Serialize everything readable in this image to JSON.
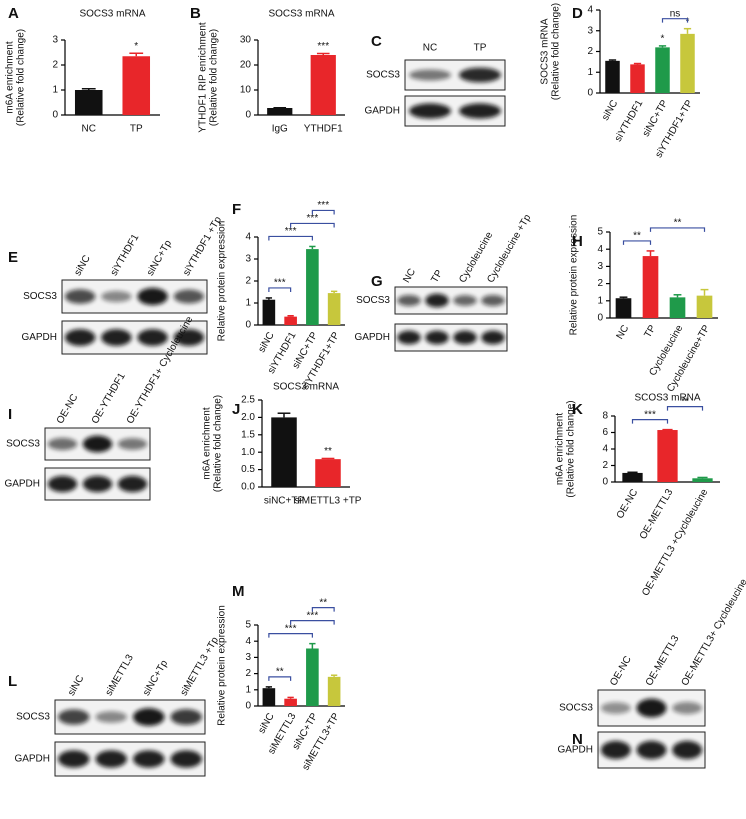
{
  "chart_data": [
    {
      "type": "bar",
      "panel": "A",
      "title": "SOCS3 mRNA",
      "ylabel": [
        "m6A enrichment",
        "(Relative fold change)"
      ],
      "categories": [
        "NC",
        "TP"
      ],
      "values": [
        1.0,
        2.35
      ],
      "errors": [
        0.05,
        0.12
      ],
      "colors": [
        "#111111",
        "#e8262a"
      ],
      "ylim": [
        0,
        3
      ],
      "yticks": [
        0,
        1,
        2,
        3
      ],
      "rotate_labels": false,
      "significance": [
        null,
        "*"
      ],
      "comparisons": []
    },
    {
      "type": "bar",
      "panel": "B",
      "title": "SOCS3 mRNA",
      "ylabel": [
        "YTHDF1 RIP enrichment",
        "(Relative fold change)"
      ],
      "categories": [
        "IgG",
        "YTHDF1"
      ],
      "values": [
        2.8,
        24.0
      ],
      "errors": [
        0.1,
        0.6
      ],
      "colors": [
        "#111111",
        "#e8262a"
      ],
      "ylim": [
        0,
        30
      ],
      "yticks": [
        0,
        10,
        20,
        30
      ],
      "rotate_labels": false,
      "significance": [
        null,
        "***"
      ],
      "comparisons": []
    },
    {
      "type": "bar",
      "panel": "D",
      "ylabel": [
        "SOCS3 mRNA",
        "(Relative fold change)"
      ],
      "categories": [
        "siNC",
        "siYTHDF1",
        "siNC+TP",
        "siYTHDF1+TP"
      ],
      "values": [
        1.55,
        1.38,
        2.2,
        2.85
      ],
      "errors": [
        0.04,
        0.04,
        0.07,
        0.25
      ],
      "colors": [
        "#111111",
        "#e8262a",
        "#1f9a4a",
        "#c7c73c"
      ],
      "ylim": [
        0,
        4
      ],
      "yticks": [
        0,
        1,
        2,
        3,
        4
      ],
      "rotate_labels": true,
      "significance": [
        null,
        null,
        "*",
        "*"
      ],
      "comparisons": [
        {
          "pair": [
            "siNC+TP",
            "siYTHDF1+TP"
          ],
          "label": "ns"
        }
      ]
    },
    {
      "type": "bar",
      "panel": "F",
      "ylabel": [
        "Relative protein expression"
      ],
      "categories": [
        "siNC",
        "siYTHDF1",
        "siNC+TP",
        "siYTHDF1+TP"
      ],
      "values": [
        1.15,
        0.38,
        3.45,
        1.45
      ],
      "errors": [
        0.08,
        0.04,
        0.12,
        0.08
      ],
      "colors": [
        "#111111",
        "#e8262a",
        "#1f9a4a",
        "#c7c73c"
      ],
      "ylim": [
        0,
        4
      ],
      "yticks": [
        0,
        1,
        2,
        3,
        4
      ],
      "rotate_labels": true,
      "significance": [],
      "comparisons": [
        {
          "pair": [
            "siNC",
            "siYTHDF1"
          ],
          "label": "***"
        },
        {
          "pair": [
            "siNC",
            "siNC+TP"
          ],
          "label": "***"
        },
        {
          "pair": [
            "siYTHDF1",
            "siYTHDF1+TP"
          ],
          "label": "***"
        },
        {
          "pair": [
            "siNC+TP",
            "siYTHDF1+TP"
          ],
          "label": "***"
        }
      ]
    },
    {
      "type": "bar",
      "panel": "H",
      "ylabel": [
        "Relative protein expression"
      ],
      "categories": [
        "NC",
        "TP",
        "Cycloleucine",
        "Cycloleucine+TP"
      ],
      "values": [
        1.15,
        3.6,
        1.2,
        1.3
      ],
      "errors": [
        0.06,
        0.3,
        0.15,
        0.35
      ],
      "colors": [
        "#111111",
        "#e8262a",
        "#1f9a4a",
        "#c7c73c"
      ],
      "ylim": [
        0,
        5
      ],
      "yticks": [
        0,
        1,
        2,
        3,
        4,
        5
      ],
      "rotate_labels": true,
      "significance": [],
      "comparisons": [
        {
          "pair": [
            "NC",
            "TP"
          ],
          "label": "**"
        },
        {
          "pair": [
            "TP",
            "Cycloleucine+TP"
          ],
          "label": "**"
        }
      ]
    },
    {
      "type": "bar",
      "panel": "J",
      "title": "SOCS3 mRNA",
      "ylabel": [
        "m6A enrichment",
        "(Relative fold change)"
      ],
      "categories": [
        "siNC+TP",
        "siMETTL3 +TP"
      ],
      "values": [
        2.0,
        0.8
      ],
      "errors": [
        0.12,
        0.02
      ],
      "colors": [
        "#111111",
        "#e8262a"
      ],
      "ylim": [
        0,
        2.5
      ],
      "yticks": [
        {
          "value": 0,
          "label": "0.0"
        },
        0.5,
        {
          "value": 1,
          "label": "1.0"
        },
        1.5,
        {
          "value": 2,
          "label": "2.0"
        },
        2.5
      ],
      "rotate_labels": false,
      "significance": [
        null,
        "**"
      ],
      "comparisons": []
    },
    {
      "type": "bar",
      "panel": "K",
      "title": "SCOS3 mRNA",
      "ylabel": [
        "m6A enrichment",
        "(Relative fold change)"
      ],
      "categories": [
        "OE-NC",
        "OE-METTL3",
        "OE-METTL3 +Cycloleucine"
      ],
      "values": [
        1.1,
        6.3,
        0.45
      ],
      "errors": [
        0.08,
        0.05,
        0.1
      ],
      "colors": [
        "#111111",
        "#e8262a",
        "#1f9a4a"
      ],
      "ylim": [
        0,
        8
      ],
      "yticks": [
        0,
        2,
        4,
        6,
        8
      ],
      "rotate_labels": true,
      "significance": [],
      "comparisons": [
        {
          "pair": [
            "OE-NC",
            "OE-METTL3"
          ],
          "label": "***"
        },
        {
          "pair": [
            "OE-METTL3",
            "OE-METTL3 +Cycloleucine"
          ],
          "label": "**"
        }
      ]
    },
    {
      "type": "bar",
      "panel": "M",
      "ylabel": [
        "Relative protein expression"
      ],
      "categories": [
        "siNC",
        "siMETTL3",
        "siNC+TP",
        "siMETTL3+TP"
      ],
      "values": [
        1.1,
        0.45,
        3.55,
        1.8
      ],
      "errors": [
        0.08,
        0.08,
        0.3,
        0.1
      ],
      "colors": [
        "#111111",
        "#e8262a",
        "#1f9a4a",
        "#c7c73c"
      ],
      "ylim": [
        0,
        5
      ],
      "yticks": [
        0,
        1,
        2,
        3,
        4,
        5
      ],
      "rotate_labels": true,
      "significance": [],
      "comparisons": [
        {
          "pair": [
            "siNC",
            "siMETTL3"
          ],
          "label": "**"
        },
        {
          "pair": [
            "siNC",
            "siNC+TP"
          ],
          "label": "***"
        },
        {
          "pair": [
            "siMETTL3",
            "siMETTL3+TP"
          ],
          "label": "***"
        },
        {
          "pair": [
            "siNC+TP",
            "siMETTL3+TP"
          ],
          "label": "**"
        }
      ]
    }
  ],
  "blots": [
    {
      "panel": "C",
      "lanes": [
        "NC",
        "TP"
      ],
      "rows": [
        "SOCS3",
        "GAPDH"
      ]
    },
    {
      "panel": "E",
      "lanes": [
        "siNC",
        "siYTHDF1",
        "siNC+Tp",
        "siYTHDF1 +Tp"
      ],
      "rows": [
        "SOCS3",
        "GAPDH"
      ]
    },
    {
      "panel": "G",
      "lanes": [
        "NC",
        "TP",
        "Cycloleucine",
        "Cycloleucine +Tp"
      ],
      "rows": [
        "SOCS3",
        "GAPDH"
      ]
    },
    {
      "panel": "I",
      "lanes": [
        "OE-NC",
        "OE-YTHDF1",
        "OE-YTHDF1+ Cycloleucine"
      ],
      "rows": [
        "SOCS3",
        "GAPDH"
      ]
    },
    {
      "panel": "L",
      "lanes": [
        "siNC",
        "siMETTL3",
        "siNC+Tp",
        "siMETTL3 +Tp"
      ],
      "rows": [
        "SOCS3",
        "GAPDH"
      ]
    },
    {
      "panel": "N",
      "lanes": [
        "OE-NC",
        "OE-METTL3",
        "OE-METTL3+ Cycloleucine"
      ],
      "rows": [
        "SOCS3",
        "GAPDH"
      ]
    }
  ]
}
